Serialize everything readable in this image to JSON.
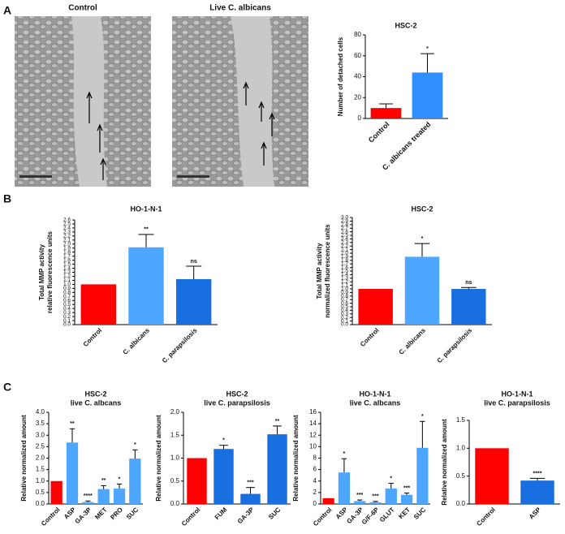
{
  "panel_labels": [
    "A",
    "B",
    "C"
  ],
  "images": [
    {
      "title": "Control"
    },
    {
      "title": "Live C. albicans"
    }
  ],
  "chart_data": [
    {
      "type": "bar",
      "title": "HSC-2",
      "y_label": "Number of detached cells",
      "categories": [
        "Control",
        "C. albicans treated"
      ],
      "values": [
        10,
        44
      ],
      "errors": [
        4,
        18
      ],
      "annotations": [
        null,
        "*"
      ],
      "colors": [
        "#ff0000",
        "#2f8fff"
      ],
      "ylim": [
        0,
        80
      ],
      "yticks": [
        0,
        20,
        40,
        60,
        80
      ]
    },
    {
      "type": "bar",
      "title": "HO-1-N-1",
      "y_label": [
        "Total MMP activity",
        "relative fluorescence units"
      ],
      "categories": [
        "Control",
        "C. albicans",
        "C. parapsilosis"
      ],
      "values": [
        1.0,
        1.92,
        1.13
      ],
      "errors": [
        null,
        0.32,
        0.32
      ],
      "annotations": [
        null,
        "**",
        "ns"
      ],
      "colors": [
        "#ff0000",
        "#4da6ff",
        "#1a6fe0"
      ],
      "ylim": [
        0,
        2.6
      ],
      "yticks": [
        {
          "value": 0,
          "label": "0.0"
        },
        0.1,
        0.2,
        0.3,
        0.4,
        0.5,
        0.6,
        0.7,
        0.8,
        0.9,
        {
          "value": 1,
          "label": "1.0"
        },
        1.1,
        1.2,
        1.3,
        1.4,
        1.5,
        1.6,
        1.7,
        1.8,
        1.9,
        {
          "value": 2,
          "label": "2.0"
        },
        2.1,
        2.2,
        2.3,
        2.4,
        2.5,
        2.6
      ]
    },
    {
      "type": "bar",
      "title": "HSC-2",
      "y_label": [
        "Total MMP activity",
        "normalized fluorescence units"
      ],
      "categories": [
        "Control",
        "C. albicans",
        "C. parapsilosis"
      ],
      "values": [
        1.0,
        1.9,
        1.0
      ],
      "errors": [
        null,
        0.37,
        0.04
      ],
      "annotations": [
        null,
        "*",
        "ns"
      ],
      "colors": [
        "#ff0000",
        "#4da6ff",
        "#1a6fe0"
      ],
      "ylim": [
        0,
        3.0
      ],
      "yticks": [
        {
          "value": 0,
          "label": "0.0"
        },
        0.1,
        0.2,
        0.3,
        0.4,
        0.5,
        0.6,
        0.7,
        0.8,
        0.9,
        {
          "value": 1,
          "label": "1.0"
        },
        1.1,
        1.2,
        1.3,
        1.4,
        1.5,
        1.6,
        1.7,
        1.8,
        1.9,
        {
          "value": 2,
          "label": "2.0"
        },
        2.1,
        2.2,
        2.3,
        2.4,
        2.5,
        2.6,
        2.7,
        2.8,
        2.9,
        {
          "value": 3,
          "label": "3.0"
        }
      ]
    },
    {
      "type": "bar",
      "title": "HSC-2",
      "subtitle": "live C. albcans",
      "y_label": "Relative normalized amount",
      "categories": [
        "Control",
        "ASP",
        "GA-3P",
        "MET",
        "PRO",
        "SUC"
      ],
      "values": [
        1.0,
        2.68,
        0.08,
        0.65,
        0.67,
        1.98
      ],
      "errors": [
        null,
        0.6,
        0.05,
        0.15,
        0.2,
        0.38
      ],
      "annotations": [
        null,
        "**",
        "****",
        "**",
        "*",
        "*"
      ],
      "colors": [
        "#ff0000",
        "#4da6ff",
        "#4da6ff",
        "#4da6ff",
        "#4da6ff",
        "#4da6ff"
      ],
      "ylim": [
        0,
        4
      ],
      "yticks": [
        {
          "value": 0,
          "label": "0.0"
        },
        0.5,
        {
          "value": 1,
          "label": "1.0"
        },
        1.5,
        {
          "value": 2,
          "label": "2.0"
        },
        2.5,
        {
          "value": 3,
          "label": "3.0"
        },
        3.5,
        {
          "value": 4,
          "label": "4.0"
        }
      ]
    },
    {
      "type": "bar",
      "title": "HSC-2",
      "subtitle": "live C. parapsilosis",
      "y_label": "Relative normalized amount",
      "categories": [
        "Control",
        "FUM",
        "GA-3P",
        "SUC"
      ],
      "values": [
        1.0,
        1.2,
        0.22,
        1.52
      ],
      "errors": [
        null,
        0.08,
        0.14,
        0.18
      ],
      "annotations": [
        null,
        "*",
        "***",
        "**"
      ],
      "colors": [
        "#ff0000",
        "#1a6fe0",
        "#1a6fe0",
        "#1a6fe0"
      ],
      "ylim": [
        0,
        2.0
      ],
      "yticks": [
        {
          "value": 0,
          "label": "0.0"
        },
        0.5,
        {
          "value": 1,
          "label": "1.0"
        },
        1.5,
        {
          "value": 2,
          "label": "2.0"
        }
      ]
    },
    {
      "type": "bar",
      "title": "HO-1-N-1",
      "subtitle": "live C. albcans",
      "y_label": "Relative normalized amount",
      "categories": [
        "Control",
        "ASP",
        "GA-3P",
        "G/F-6P",
        "GLUT",
        "KET",
        "SUC"
      ],
      "values": [
        1.0,
        5.5,
        0.5,
        0.3,
        2.7,
        1.6,
        9.8
      ],
      "errors": [
        null,
        2.4,
        0.2,
        0.15,
        0.9,
        0.3,
        4.6
      ],
      "annotations": [
        null,
        "*",
        "***",
        "***",
        "*",
        "***",
        "*"
      ],
      "colors": [
        "#ff0000",
        "#4da6ff",
        "#4da6ff",
        "#4da6ff",
        "#4da6ff",
        "#4da6ff",
        "#4da6ff"
      ],
      "ylim": [
        0,
        16
      ],
      "yticks": [
        0,
        2,
        4,
        6,
        8,
        10,
        12,
        14,
        16
      ]
    },
    {
      "type": "bar",
      "title": "HO-1-N-1",
      "subtitle": "live C. parapsilosis",
      "y_label": "Relative normalized amount",
      "categories": [
        "Control",
        "ASP"
      ],
      "values": [
        1.0,
        0.42
      ],
      "errors": [
        null,
        0.04
      ],
      "annotations": [
        null,
        "****"
      ],
      "colors": [
        "#ff0000",
        "#1a6fe0"
      ],
      "ylim": [
        0,
        1.5
      ],
      "yticks": [
        {
          "value": 0,
          "label": "0.0"
        },
        0.5,
        {
          "value": 1,
          "label": "1.0"
        },
        1.5
      ]
    }
  ]
}
